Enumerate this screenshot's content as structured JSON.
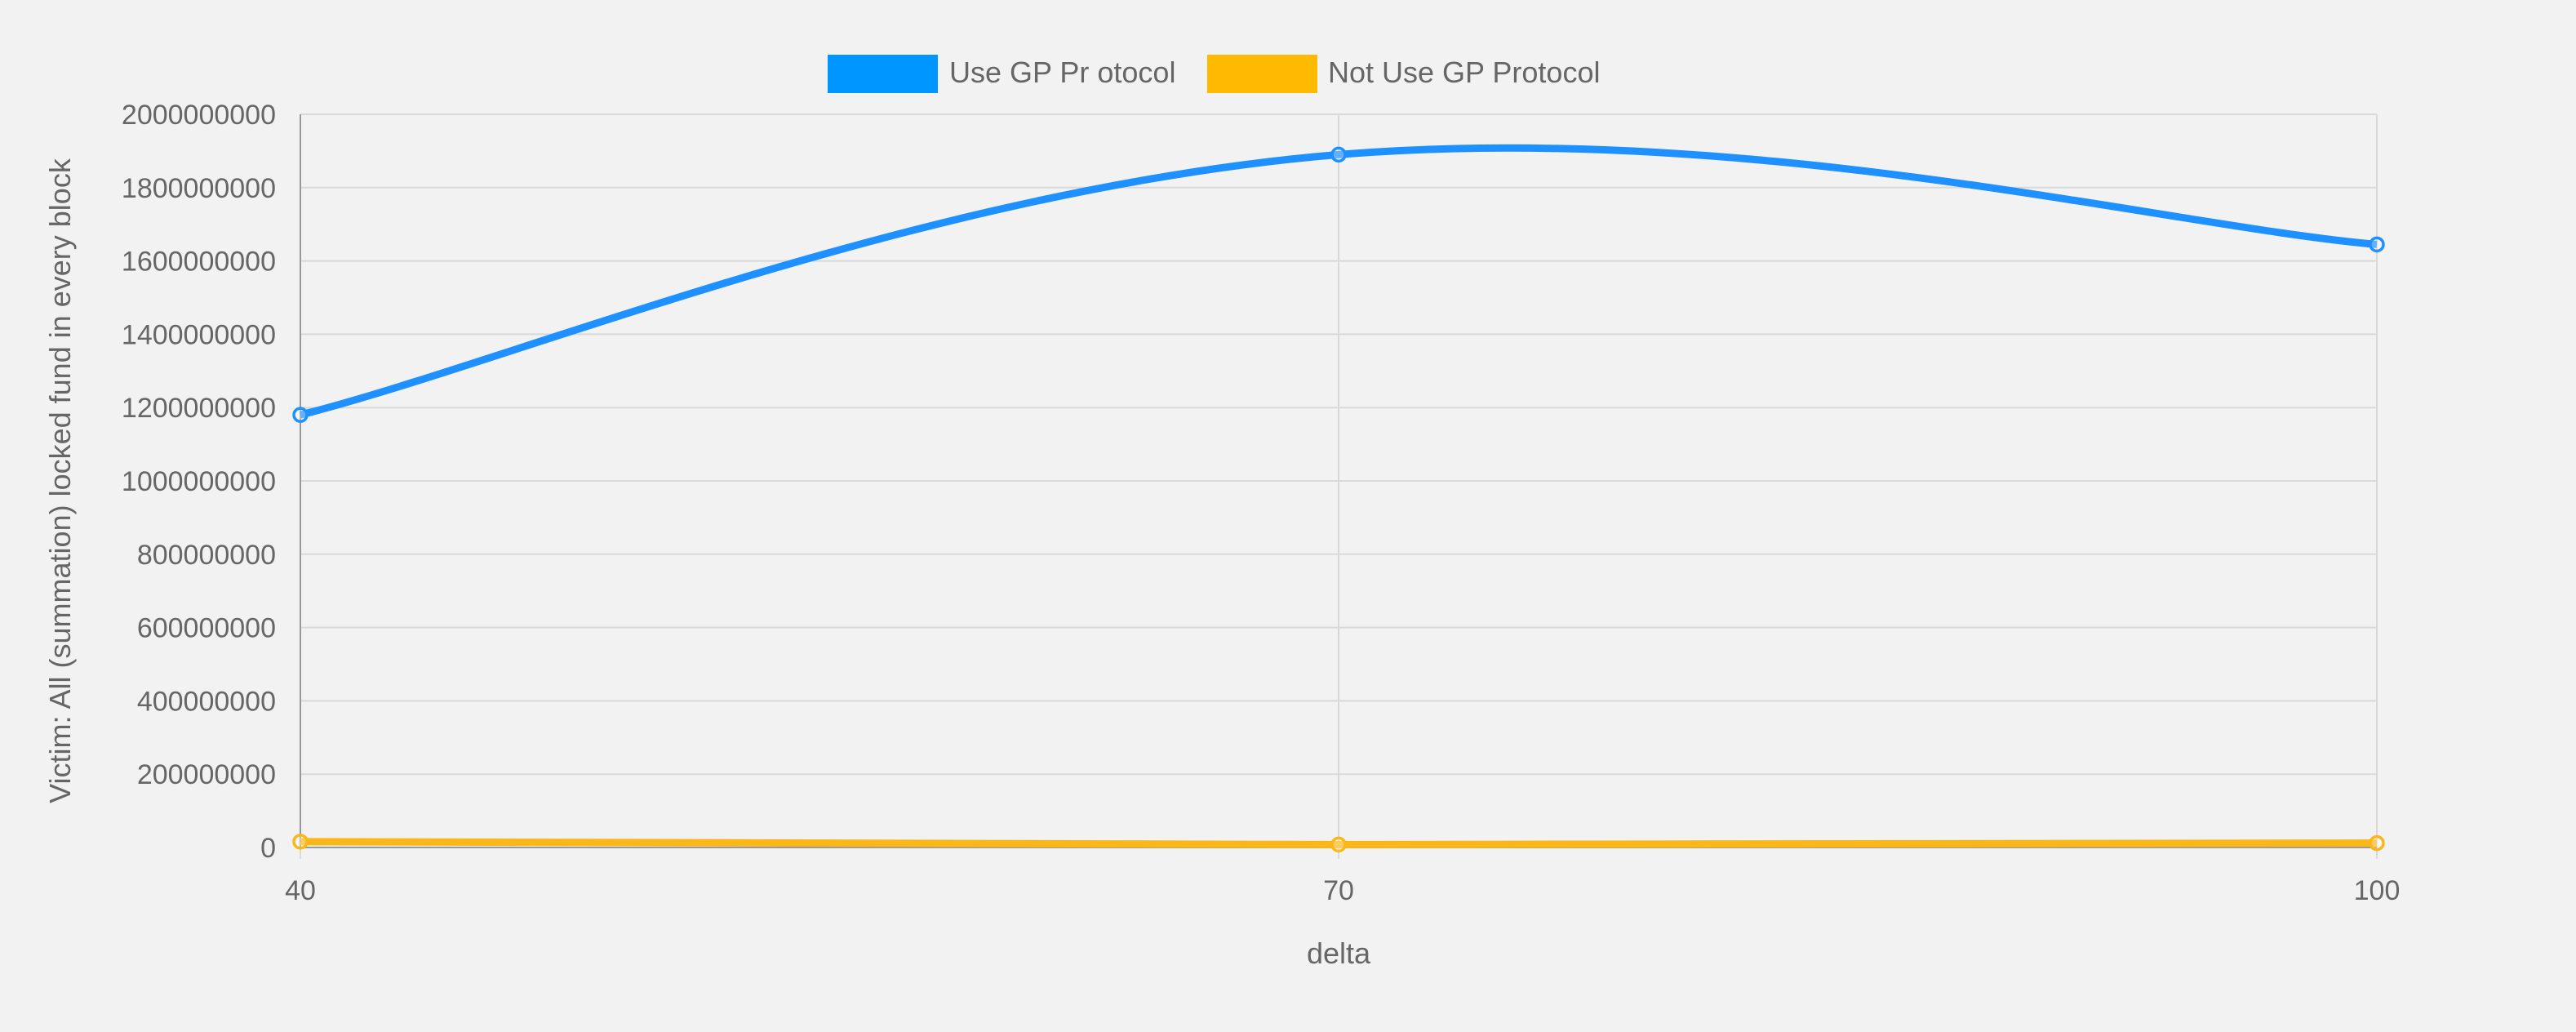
{
  "chart_data": {
    "type": "line",
    "x": [
      40,
      70,
      100
    ],
    "x_tick_labels": [
      "40",
      "70",
      "100"
    ],
    "y_tick_labels": [
      "0",
      "200000000",
      "400000000",
      "600000000",
      "800000000",
      "1000000000",
      "1200000000",
      "1400000000",
      "1600000000",
      "1800000000",
      "2000000000"
    ],
    "ylim": [
      0,
      2000000000
    ],
    "xlabel": "delta",
    "ylabel": "Victim: All (summation) locked fund in every block",
    "grid": true,
    "legend_position": "top-center",
    "series": [
      {
        "name": "Use GP Pr otocol",
        "color": "#1e90ff",
        "legend_color": "#0096ff",
        "values": [
          1180000000,
          1890000000,
          1645000000
        ]
      },
      {
        "name": "Not Use GP Protocol",
        "color": "#fbb718",
        "legend_color": "#ffba00",
        "values": [
          16000000,
          8000000,
          12000000
        ]
      }
    ]
  }
}
